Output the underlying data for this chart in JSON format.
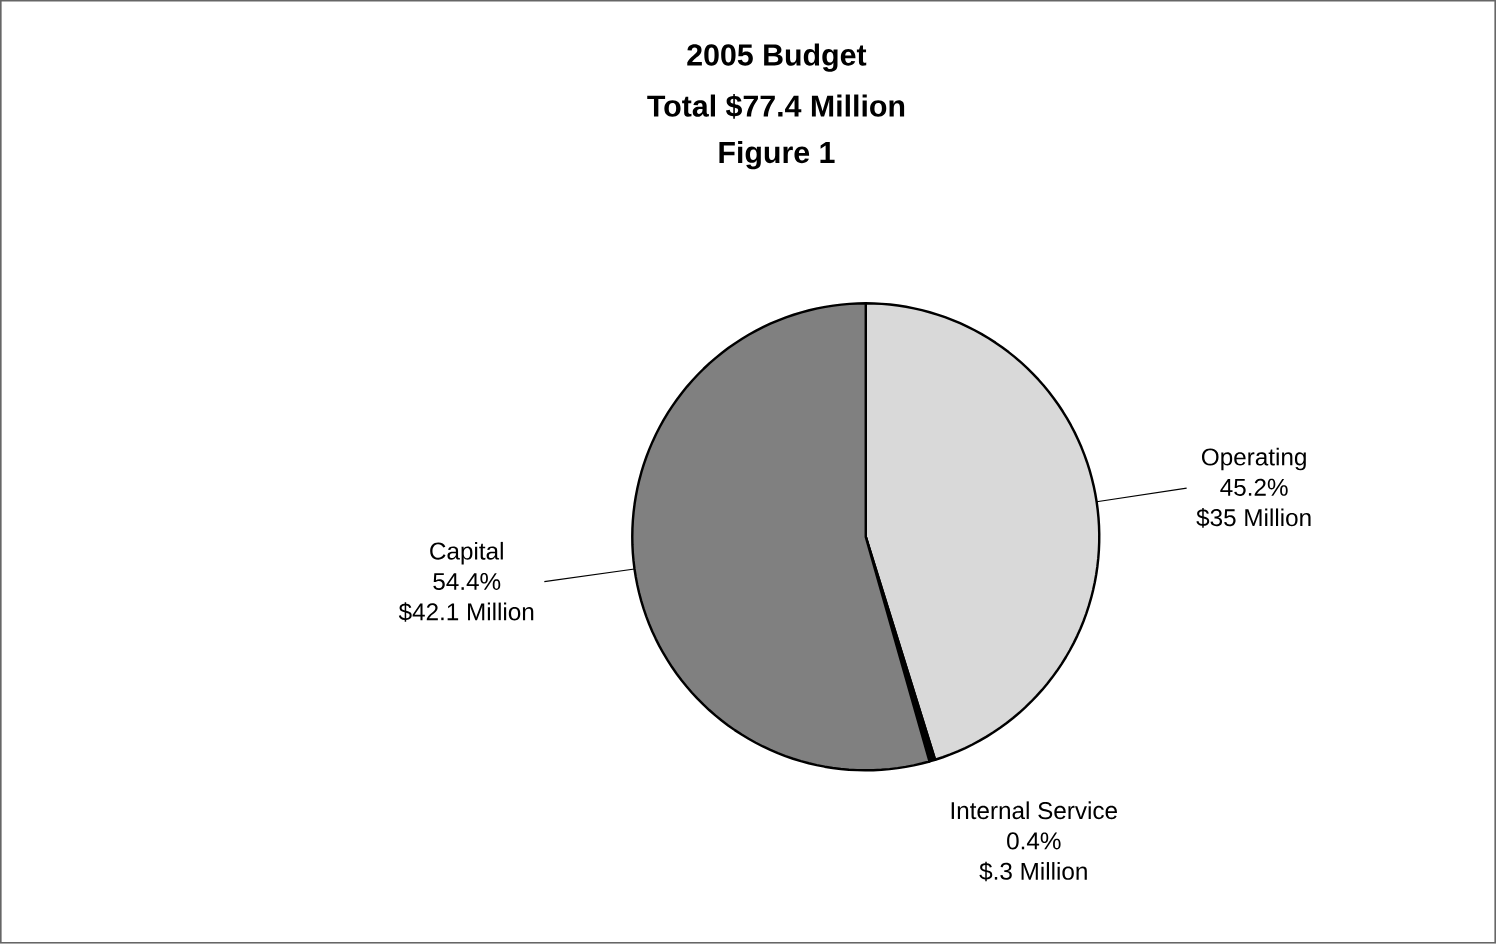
{
  "chart_data": {
    "type": "pie",
    "title": "2005 Budget",
    "subtitle": "Total $77.4 Million",
    "categories": [
      "Operating",
      "Internal Service",
      "Capital"
    ],
    "values": [
      45.2,
      0.4,
      54.4
    ],
    "value_labels": [
      "45.2%",
      "0.4%",
      "54.4%"
    ],
    "colors": [
      "#d9d9d9",
      "#000000",
      "#808080"
    ],
    "annotations": [
      "Figure 1",
      {
        "text": "$35 Million",
        "x": "Operating"
      },
      {
        "text": "$.3 Million",
        "x": "Internal Service"
      },
      {
        "text": "$42.1 Million",
        "x": "Capital"
      }
    ]
  }
}
